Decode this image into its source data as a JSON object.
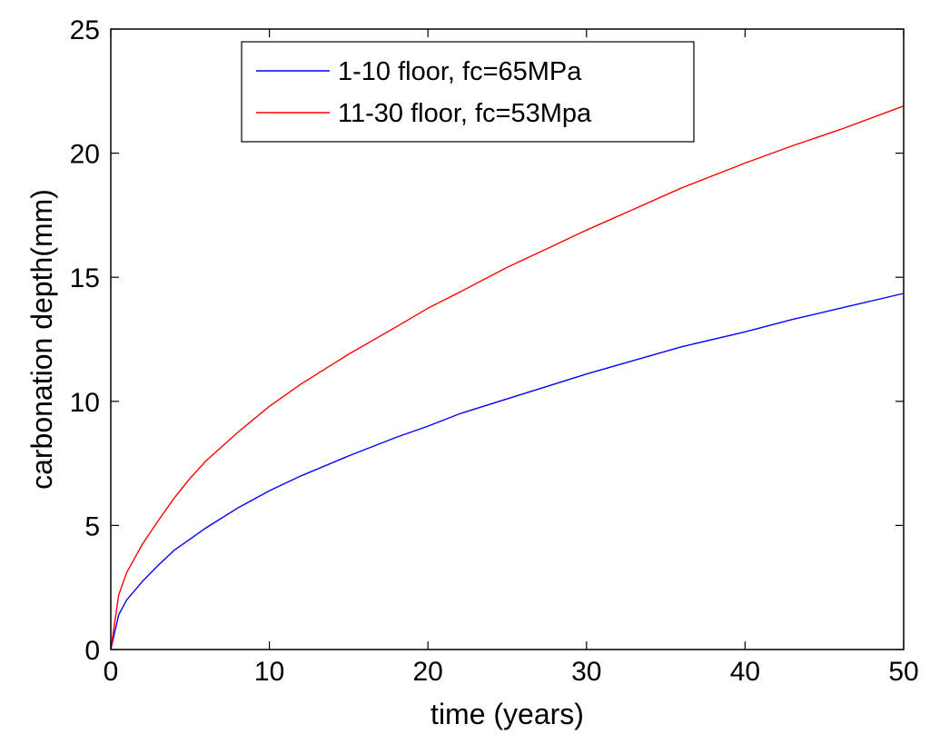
{
  "chart_data": {
    "type": "line",
    "title": "",
    "xlabel": "time (years)",
    "ylabel": "carbonation depth(mm)",
    "xlim": [
      0,
      50
    ],
    "ylim": [
      0,
      25
    ],
    "xticks": [
      "0",
      "10",
      "20",
      "30",
      "40",
      "50"
    ],
    "yticks": [
      "0",
      "5",
      "10",
      "15",
      "20",
      "25"
    ],
    "grid": false,
    "legend_position": "top-center",
    "x": [
      0,
      0.5,
      1,
      2,
      3,
      4,
      5,
      6,
      8,
      10,
      12,
      15,
      18,
      20,
      22,
      25,
      28,
      30,
      33,
      36,
      40,
      43,
      46,
      50
    ],
    "series": [
      {
        "name": "1-10 floor, fc=65MPa",
        "color": "#0000ff",
        "values": [
          0,
          1.4,
          2.0,
          2.75,
          3.4,
          4.0,
          4.45,
          4.9,
          5.7,
          6.4,
          7.0,
          7.8,
          8.55,
          9.0,
          9.5,
          10.1,
          10.7,
          11.1,
          11.65,
          12.2,
          12.8,
          13.3,
          13.75,
          14.35
        ]
      },
      {
        "name": "11-30 floor, fc=53Mpa",
        "color": "#ff0000",
        "values": [
          0,
          2.2,
          3.1,
          4.25,
          5.2,
          6.1,
          6.9,
          7.6,
          8.75,
          9.8,
          10.7,
          11.9,
          13.0,
          13.75,
          14.4,
          15.4,
          16.3,
          16.9,
          17.75,
          18.6,
          19.6,
          20.3,
          20.95,
          21.9
        ]
      }
    ]
  }
}
